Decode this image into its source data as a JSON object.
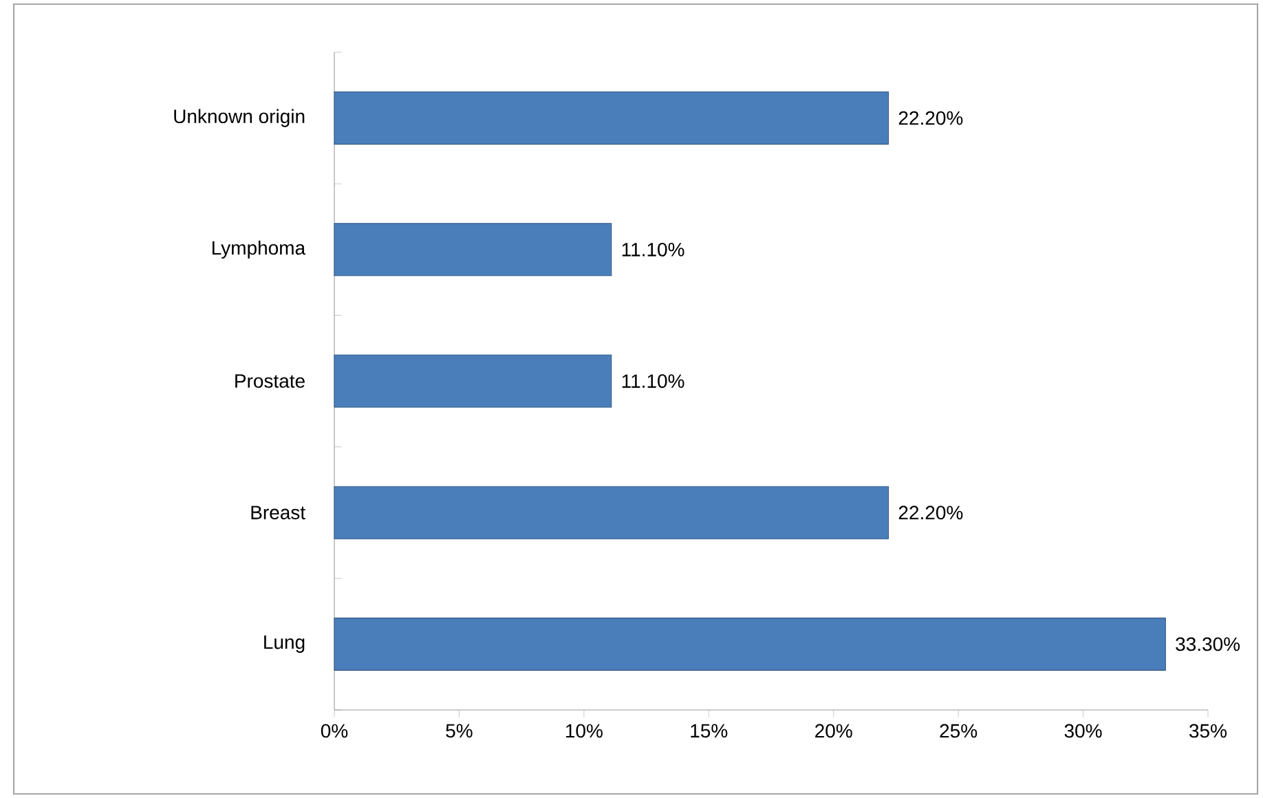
{
  "chart_data": {
    "type": "bar",
    "orientation": "horizontal",
    "categories": [
      "Unknown origin",
      "Lymphoma",
      "Prostate",
      "Breast",
      "Lung"
    ],
    "values": [
      22.2,
      11.1,
      11.1,
      22.2,
      33.3
    ],
    "value_labels": [
      "22.20%",
      "11.10%",
      "11.10%",
      "22.20%",
      "33.30%"
    ],
    "color": "#4a7ebb",
    "xlim": [
      0,
      35
    ],
    "xticks": [
      {
        "value": 0,
        "label": "0%"
      },
      {
        "value": 5,
        "label": "5%"
      },
      {
        "value": 10,
        "label": "10%"
      },
      {
        "value": 15,
        "label": "15%"
      },
      {
        "value": 20,
        "label": "20%"
      },
      {
        "value": 25,
        "label": "25%"
      },
      {
        "value": 30,
        "label": "30%"
      },
      {
        "value": 35,
        "label": "35%"
      }
    ],
    "grid": false
  }
}
